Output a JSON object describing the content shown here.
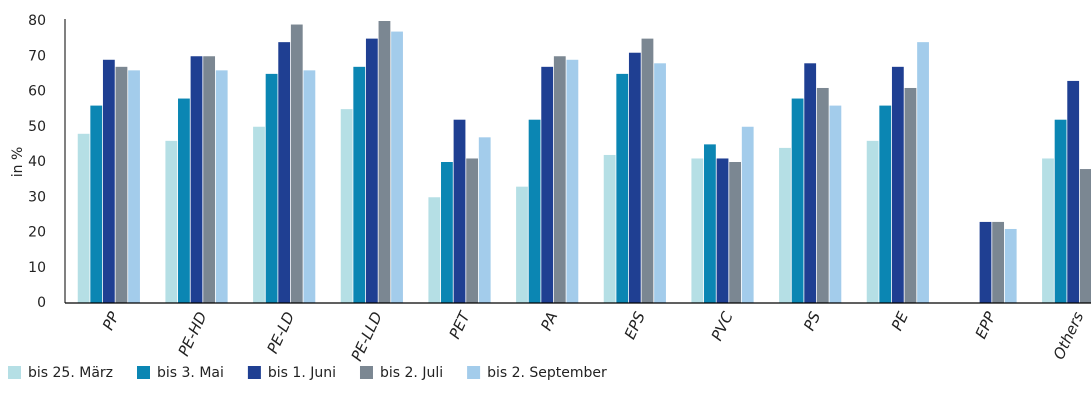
{
  "chart_data": {
    "type": "bar",
    "y_label": "in %",
    "categories": [
      "PP",
      "PE-HD",
      "PE-LD",
      "PE-LLD",
      "PET",
      "PA",
      "EPS",
      "PVC",
      "PS",
      "PE",
      "EPP",
      "Others"
    ],
    "series": [
      {
        "name": "bis 25. März",
        "color": "#b5dfe5",
        "values": [
          48,
          46,
          50,
          55,
          30,
          33,
          42,
          41,
          44,
          46,
          null,
          41
        ]
      },
      {
        "name": "bis 3. Mai",
        "color": "#0b86b3",
        "values": [
          56,
          58,
          65,
          67,
          40,
          52,
          65,
          45,
          58,
          56,
          null,
          52
        ]
      },
      {
        "name": "bis 1. Juni",
        "color": "#1f3f92",
        "values": [
          69,
          70,
          74,
          75,
          52,
          67,
          71,
          41,
          68,
          67,
          23,
          63
        ]
      },
      {
        "name": "bis 2. Juli",
        "color": "#7b8792",
        "values": [
          67,
          70,
          79,
          80,
          41,
          70,
          75,
          40,
          61,
          61,
          23,
          38
        ]
      },
      {
        "name": "bis 2. September",
        "color": "#a3cceb",
        "values": [
          66,
          66,
          66,
          77,
          47,
          69,
          68,
          50,
          56,
          74,
          21,
          null
        ]
      }
    ],
    "ylim": [
      0,
      80
    ],
    "yticks": [
      0,
      10,
      20,
      30,
      40,
      50,
      60,
      70,
      80
    ],
    "grid": false,
    "legend": "bottom"
  }
}
